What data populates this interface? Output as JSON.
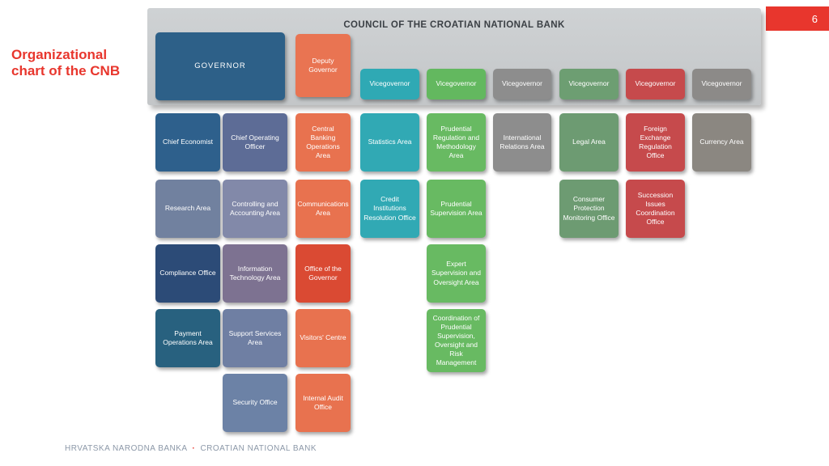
{
  "slide": {
    "number": "6",
    "title": [
      "Organizational",
      "chart of the CNB"
    ],
    "accent_red": "#E8362D",
    "footer": {
      "bank_name_hr": "HRVATSKA NARODNA BANKA",
      "separator": "·",
      "bank_name_en": "CROATIAN NATIONAL BANK"
    }
  },
  "org_chart": {
    "council_title": "COUNCIL OF THE CROATIAN NATIONAL BANK",
    "governor": {
      "label": "GOVERNOR",
      "color": "#2D6088"
    },
    "deputy_governor": {
      "label": "Deputy Governor",
      "color": "#E97452"
    },
    "vicegovernors": [
      {
        "label": "Vicegovernor",
        "color": "#2FA9B4"
      },
      {
        "label": "Vicegovernor",
        "color": "#63B85F"
      },
      {
        "label": "Vicegovernor",
        "color": "#8D8D8D"
      },
      {
        "label": "Vicegovernor",
        "color": "#6D9E72"
      },
      {
        "label": "Vicegovernor",
        "color": "#C64A4C"
      },
      {
        "label": "Vicegovernor",
        "color": "#8C8A88"
      }
    ],
    "boxes": [
      {
        "label": "Chief Economist",
        "col": 1,
        "row": 1,
        "color": "#2E608C"
      },
      {
        "label": "Research Area",
        "col": 1,
        "row": 2,
        "color": "#71819F"
      },
      {
        "label": "Compliance Office",
        "col": 1,
        "row": 3,
        "color": "#2C4B77"
      },
      {
        "label": "Payment Operations Area",
        "col": 1,
        "row": 4,
        "color": "#28617F"
      },
      {
        "label": "Chief Operating Officer",
        "col": 2,
        "row": 1,
        "color": "#5D6C96"
      },
      {
        "label": "Controlling and Accounting Area",
        "col": 2,
        "row": 2,
        "color": "#8289A9"
      },
      {
        "label": "Information Technology Area",
        "col": 2,
        "row": 3,
        "color": "#7D7291"
      },
      {
        "label": "Support Services Area",
        "col": 2,
        "row": 4,
        "color": "#6F7FA3"
      },
      {
        "label": "Security Office",
        "col": 2,
        "row": 5,
        "color": "#6C82A6"
      },
      {
        "label": "Central Banking Operations Area",
        "col": 3,
        "row": 1,
        "color": "#E8724F"
      },
      {
        "label": "Communications Area",
        "col": 3,
        "row": 2,
        "color": "#E8724F"
      },
      {
        "label": "Office of the Governor",
        "col": 3,
        "row": 3,
        "color": "#DA4A33"
      },
      {
        "label": "Visitors' Centre",
        "col": 3,
        "row": 4,
        "color": "#E8724F"
      },
      {
        "label": "Internal Audit Office",
        "col": 3,
        "row": 5,
        "color": "#E8724F"
      },
      {
        "label": "Statistics Area",
        "col": 4,
        "row": 1,
        "color": "#31A9B4"
      },
      {
        "label": "Credit Institutions Resolution Office",
        "col": 4,
        "row": 2,
        "color": "#31A9B4"
      },
      {
        "label": "Prudential Regulation and Methodology Area",
        "col": 5,
        "row": 1,
        "color": "#68BA62"
      },
      {
        "label": "Prudential Supervision Area",
        "col": 5,
        "row": 2,
        "color": "#68BA62"
      },
      {
        "label": "Expert Supervision and Oversight Area",
        "col": 5,
        "row": 3,
        "color": "#68BA62"
      },
      {
        "label": "Coordination of Prudential Supervision, Oversight and Risk Management",
        "col": 5,
        "row": 4,
        "height": 78,
        "color": "#68BA62"
      },
      {
        "label": "International Relations Area",
        "col": 6,
        "row": 1,
        "color": "#8D8D8D"
      },
      {
        "label": "Legal Area",
        "col": 7,
        "row": 1,
        "color": "#6D9B72"
      },
      {
        "label": "Consumer Protection Monitoring Office",
        "col": 7,
        "row": 2,
        "color": "#6D9B72"
      },
      {
        "label": "Foreign Exchange Regulation Office",
        "col": 8,
        "row": 1,
        "color": "#C64A4C"
      },
      {
        "label": "Succession Issues Coordination Office",
        "col": 8,
        "row": 2,
        "color": "#C64A4C"
      },
      {
        "label": "Currency Area",
        "col": 9,
        "row": 1,
        "color": "#8B8781"
      }
    ]
  }
}
